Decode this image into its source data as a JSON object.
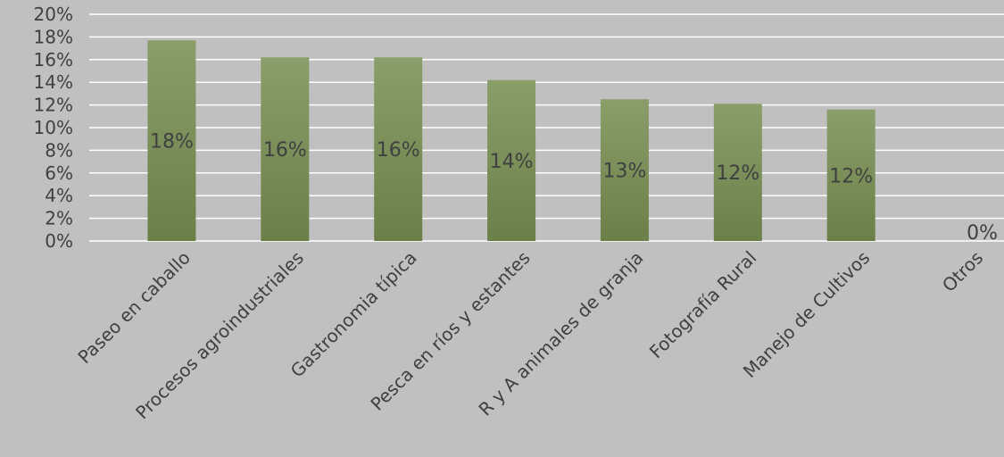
{
  "chart_data": {
    "type": "bar",
    "title": "",
    "xlabel": "",
    "ylabel": "",
    "ylim": [
      0,
      20
    ],
    "y_ticks": [
      0,
      2,
      4,
      6,
      8,
      10,
      12,
      14,
      16,
      18,
      20
    ],
    "y_tick_format": "percent",
    "grid": true,
    "legend": "none",
    "categories": [
      "Paseo en caballo",
      "Procesos agroindustriales",
      "Gastronomia típica",
      "Pesca en ríos y estantes",
      "R y A animales de granja",
      "Fotografía Rural",
      "Manejo de Cultivos",
      "Otros"
    ],
    "values": [
      17.7,
      16.2,
      16.2,
      14.2,
      12.5,
      12.1,
      11.6,
      0
    ],
    "data_labels": [
      "18%",
      "16%",
      "16%",
      "14%",
      "13%",
      "12%",
      "12%",
      "0%"
    ],
    "colors": {
      "bar_top": "#8a9e6a",
      "bar_bottom": "#6b8048",
      "background": "#c0c0c0",
      "grid": "#ffffff",
      "text": "#404040"
    }
  }
}
